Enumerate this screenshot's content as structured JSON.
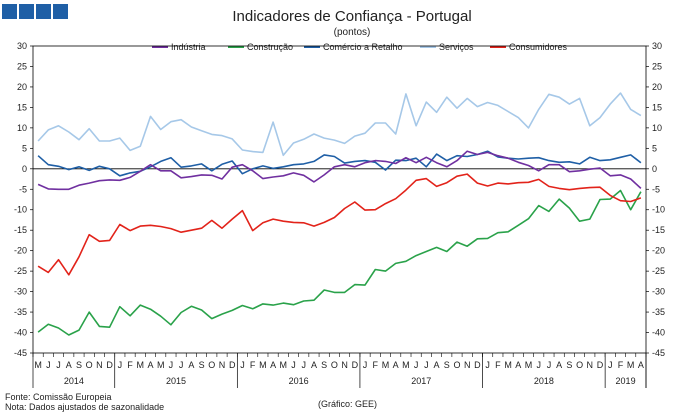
{
  "header": {
    "brand_colors": [
      "#1f5fa6"
    ],
    "logo_icon": "gee-logo-icon"
  },
  "footer": {
    "source": "Fonte: Comissão Europeia",
    "note": "Nota: Dados ajustados de sazonalidade",
    "credit": "(Gráfico: GEE)"
  },
  "chart_data": {
    "type": "line",
    "title": "Indicadores de Confiança - Portugal",
    "subtitle": "(pontos)",
    "xlabel": "",
    "ylabel": "",
    "ylim": [
      -45,
      30
    ],
    "yticks": [
      30,
      25,
      20,
      15,
      10,
      5,
      0,
      -5,
      -10,
      -15,
      -20,
      -25,
      -30,
      -35,
      -40,
      -45
    ],
    "grid": false,
    "legend_position": "top",
    "x": [
      "2014-05",
      "2014-06",
      "2014-07",
      "2014-08",
      "2014-09",
      "2014-10",
      "2014-11",
      "2014-12",
      "2015-01",
      "2015-02",
      "2015-03",
      "2015-04",
      "2015-05",
      "2015-06",
      "2015-07",
      "2015-08",
      "2015-09",
      "2015-10",
      "2015-11",
      "2015-12",
      "2016-01",
      "2016-02",
      "2016-03",
      "2016-04",
      "2016-05",
      "2016-06",
      "2016-07",
      "2016-08",
      "2016-09",
      "2016-10",
      "2016-11",
      "2016-12",
      "2017-01",
      "2017-02",
      "2017-03",
      "2017-04",
      "2017-05",
      "2017-06",
      "2017-07",
      "2017-08",
      "2017-09",
      "2017-10",
      "2017-11",
      "2017-12",
      "2018-01",
      "2018-02",
      "2018-03",
      "2018-04",
      "2018-05",
      "2018-06",
      "2018-07",
      "2018-08",
      "2018-09",
      "2018-10",
      "2018-11",
      "2018-12",
      "2019-01",
      "2019-02",
      "2019-03",
      "2019-04"
    ],
    "month_labels": [
      "M",
      "J",
      "J",
      "A",
      "S",
      "O",
      "N",
      "D",
      "J",
      "F",
      "M",
      "A",
      "M",
      "J",
      "J",
      "A",
      "S",
      "O",
      "N",
      "D",
      "J",
      "F",
      "M",
      "A",
      "M",
      "J",
      "J",
      "A",
      "S",
      "O",
      "N",
      "D",
      "J",
      "F",
      "M",
      "A",
      "M",
      "J",
      "J",
      "A",
      "S",
      "O",
      "N",
      "D",
      "J",
      "F",
      "M",
      "A",
      "M",
      "J",
      "J",
      "A",
      "S",
      "O",
      "N",
      "D",
      "J",
      "F",
      "M",
      "A"
    ],
    "years": [
      {
        "label": "2014",
        "start": 0,
        "end": 7
      },
      {
        "label": "2015",
        "start": 8,
        "end": 19
      },
      {
        "label": "2016",
        "start": 20,
        "end": 31
      },
      {
        "label": "2017",
        "start": 32,
        "end": 43
      },
      {
        "label": "2018",
        "start": 44,
        "end": 55
      },
      {
        "label": "2019",
        "start": 56,
        "end": 59
      }
    ],
    "series": [
      {
        "name": "Indústria",
        "color": "#7030a0",
        "values": [
          -3.8,
          -4.9,
          -5,
          -5,
          -4,
          -3.5,
          -2.9,
          -2.7,
          -2.8,
          -2.1,
          -0.6,
          1,
          -0.5,
          -0.5,
          -2.2,
          -1.9,
          -1.5,
          -1.6,
          -2.5,
          0.4,
          1,
          -0.5,
          -2.4,
          -2,
          -1.7,
          -1,
          -1.6,
          -3.2,
          -1.5,
          0.5,
          1,
          0.5,
          1.5,
          2,
          1.8,
          1.3,
          2.7,
          1.5,
          2.8,
          1.5,
          0.5,
          2,
          4.3,
          3.5,
          4,
          3.2,
          2.6,
          1.6,
          0.8,
          -0.5,
          1,
          1,
          -0.7,
          -0.5,
          -0.1,
          0.2,
          -1.7,
          -1.5,
          -2.5,
          -4.8
        ]
      },
      {
        "name": "Construção",
        "color": "#2aa24a",
        "values": [
          -39.9,
          -38,
          -38.9,
          -40.6,
          -39.4,
          -35,
          -38.5,
          -38.7,
          -33.7,
          -35.9,
          -33.3,
          -34.3,
          -36,
          -38.1,
          -35.1,
          -33.6,
          -34.5,
          -36.6,
          -35.5,
          -34.6,
          -33.4,
          -34.2,
          -33,
          -33.3,
          -32.8,
          -33.2,
          -32.3,
          -32.1,
          -29.6,
          -30.2,
          -30.2,
          -28.3,
          -28.4,
          -24.6,
          -25,
          -23.1,
          -22.6,
          -21.2,
          -20.2,
          -19.2,
          -20.2,
          -17.9,
          -18.9,
          -17.1,
          -17,
          -15.6,
          -15.4,
          -13.8,
          -12.2,
          -9,
          -10.4,
          -7.4,
          -9.6,
          -12.8,
          -12.3,
          -7.5,
          -7.4,
          -5.3,
          -10,
          -5.6
        ]
      },
      {
        "name": "Comércio a Retalho",
        "color": "#1f5fa6",
        "values": [
          3.2,
          1,
          0.6,
          -0.2,
          0.5,
          -0.4,
          0.6,
          0,
          -1.7,
          -1,
          -0.6,
          0.5,
          1.8,
          2.7,
          0.4,
          0.7,
          1.2,
          -0.5,
          1.1,
          1.9,
          -1.2,
          0,
          0.7,
          0.1,
          0.5,
          1,
          1.2,
          1.8,
          3.4,
          3,
          1.4,
          1.8,
          2,
          1.6,
          -0.3,
          2.1,
          2,
          2.6,
          0.5,
          3.6,
          2,
          3.2,
          3,
          3.5,
          4.3,
          2.9,
          2.6,
          2.4,
          2.6,
          2.7,
          2,
          1.6,
          1.7,
          1.2,
          2.8,
          2,
          2.2,
          2.8,
          3.4,
          1.5
        ]
      },
      {
        "name": "Serviços",
        "color": "#a6c8e8",
        "values": [
          6.8,
          9.5,
          10.5,
          9,
          7.1,
          9.8,
          6.8,
          6.8,
          7.5,
          4.5,
          5.5,
          12.8,
          9.6,
          11.5,
          12,
          10.2,
          9.3,
          8.4,
          8.1,
          7.3,
          4.6,
          4.2,
          4,
          11.4,
          3.3,
          6.3,
          7.2,
          8.5,
          7.5,
          7,
          6.2,
          8,
          8.7,
          11.2,
          11.2,
          8.5,
          18.3,
          10.5,
          16.3,
          13.8,
          17.5,
          14.8,
          17.2,
          15.2,
          16.2,
          15.5,
          14,
          12.5,
          10,
          14.5,
          18.2,
          17.5,
          15.8,
          17.2,
          10.5,
          12.5,
          15.8,
          18.5,
          14.5,
          13
        ]
      },
      {
        "name": "Consumidores",
        "color": "#e2231a",
        "values": [
          -23.8,
          -25.3,
          -22.2,
          -25.9,
          -21.5,
          -16.1,
          -17.7,
          -17.5,
          -13.6,
          -15.1,
          -14,
          -13.8,
          -14.1,
          -14.6,
          -15.5,
          -15,
          -14.5,
          -12.6,
          -14.5,
          -12.3,
          -10.2,
          -15.1,
          -13.2,
          -12.3,
          -12.8,
          -13.1,
          -13.2,
          -14,
          -13.1,
          -11.9,
          -9.7,
          -8.1,
          -10.1,
          -10,
          -8.5,
          -7.3,
          -5.2,
          -2.8,
          -2.4,
          -4.3,
          -3.4,
          -1.8,
          -1.3,
          -3.5,
          -4.2,
          -3.5,
          -3.7,
          -3.4,
          -3.3,
          -2.6,
          -4.3,
          -4.8,
          -5.1,
          -4.8,
          -4.6,
          -4.5,
          -6.5,
          -7.8,
          -8,
          -7.1
        ]
      }
    ]
  }
}
